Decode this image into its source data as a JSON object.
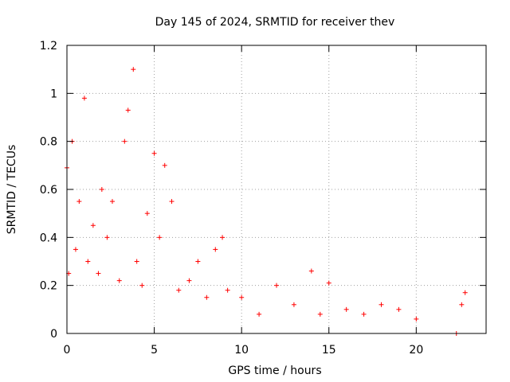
{
  "chart_data": {
    "type": "scatter",
    "title": "Day 145 of 2024, SRMTID for receiver thev",
    "xlabel": "GPS time / hours",
    "ylabel": "SRMTID / TECUs",
    "xlim": [
      0,
      24
    ],
    "ylim": [
      0,
      1.2
    ],
    "xticks": [
      0,
      5,
      10,
      15,
      20
    ],
    "xtick_labels": [
      "0",
      "5",
      "10",
      "15",
      "20"
    ],
    "yticks": [
      0,
      0.2,
      0.4,
      0.6,
      0.8,
      1.0,
      1.2
    ],
    "ytick_labels": [
      "0",
      "0.2",
      "0.4",
      "0.6",
      "0.8",
      "1",
      "1.2"
    ],
    "grid": true,
    "marker": "+",
    "series": [
      {
        "name": "SRMTID",
        "color": "#ff0000",
        "envelope_points": [
          {
            "x": 0.0,
            "y": 0.69
          },
          {
            "x": 0.1,
            "y": 0.25
          },
          {
            "x": 0.3,
            "y": 0.8
          },
          {
            "x": 0.5,
            "y": 0.35
          },
          {
            "x": 0.7,
            "y": 0.55
          },
          {
            "x": 1.0,
            "y": 0.98
          },
          {
            "x": 1.2,
            "y": 0.3
          },
          {
            "x": 1.5,
            "y": 0.45
          },
          {
            "x": 1.8,
            "y": 0.25
          },
          {
            "x": 2.0,
            "y": 0.6
          },
          {
            "x": 2.3,
            "y": 0.4
          },
          {
            "x": 2.6,
            "y": 0.55
          },
          {
            "x": 3.0,
            "y": 0.22
          },
          {
            "x": 3.3,
            "y": 0.8
          },
          {
            "x": 3.5,
            "y": 0.93
          },
          {
            "x": 3.8,
            "y": 1.1
          },
          {
            "x": 4.0,
            "y": 0.3
          },
          {
            "x": 4.3,
            "y": 0.2
          },
          {
            "x": 4.6,
            "y": 0.5
          },
          {
            "x": 5.0,
            "y": 0.75
          },
          {
            "x": 5.3,
            "y": 0.4
          },
          {
            "x": 5.6,
            "y": 0.7
          },
          {
            "x": 6.0,
            "y": 0.55
          },
          {
            "x": 6.4,
            "y": 0.18
          },
          {
            "x": 7.0,
            "y": 0.22
          },
          {
            "x": 7.5,
            "y": 0.3
          },
          {
            "x": 8.0,
            "y": 0.15
          },
          {
            "x": 8.5,
            "y": 0.35
          },
          {
            "x": 8.9,
            "y": 0.4
          },
          {
            "x": 9.2,
            "y": 0.18
          },
          {
            "x": 10.0,
            "y": 0.15
          },
          {
            "x": 11.0,
            "y": 0.08
          },
          {
            "x": 12.0,
            "y": 0.2
          },
          {
            "x": 13.0,
            "y": 0.12
          },
          {
            "x": 14.0,
            "y": 0.26
          },
          {
            "x": 14.5,
            "y": 0.08
          },
          {
            "x": 15.0,
            "y": 0.21
          },
          {
            "x": 16.0,
            "y": 0.1
          },
          {
            "x": 17.0,
            "y": 0.08
          },
          {
            "x": 18.0,
            "y": 0.12
          },
          {
            "x": 19.0,
            "y": 0.1
          },
          {
            "x": 20.0,
            "y": 0.06
          },
          {
            "x": 22.3,
            "y": 0.0
          },
          {
            "x": 22.6,
            "y": 0.12
          },
          {
            "x": 22.8,
            "y": 0.17
          }
        ]
      }
    ]
  }
}
